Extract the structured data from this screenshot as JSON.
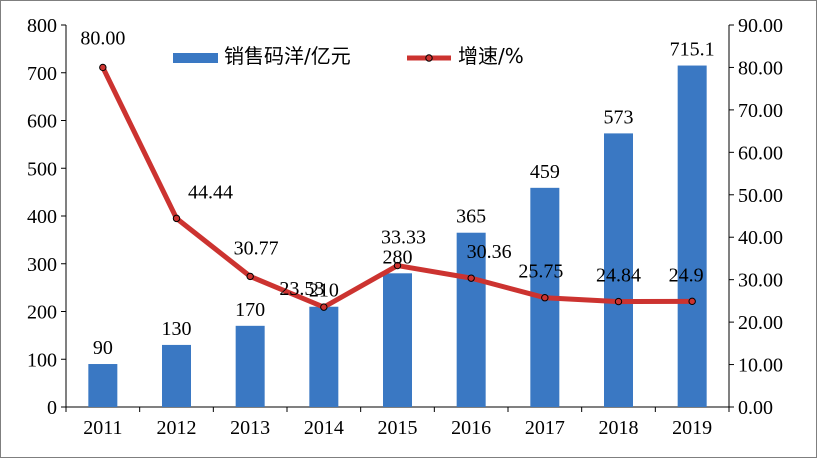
{
  "chart_data": {
    "type": "bar+line",
    "categories": [
      "2011",
      "2012",
      "2013",
      "2014",
      "2015",
      "2016",
      "2017",
      "2018",
      "2019"
    ],
    "series": [
      {
        "name": "销售码洋/亿元",
        "type": "bar",
        "axis": "left",
        "color": "#3a78c3",
        "values": [
          90,
          130,
          170,
          210,
          280,
          365,
          459,
          573,
          715.1
        ],
        "labels": [
          "90",
          "130",
          "170",
          "210",
          "280",
          "365",
          "459",
          "573",
          "715.1"
        ]
      },
      {
        "name": "增速/%",
        "type": "line",
        "axis": "right",
        "color": "#cc3330",
        "values": [
          80.0,
          44.44,
          30.77,
          23.53,
          33.33,
          30.36,
          25.75,
          24.84,
          24.9
        ],
        "labels": [
          "80.00",
          "44.44",
          "30.77",
          "23.53",
          "33.33",
          "30.36",
          "25.75",
          "24.84",
          "24.9"
        ]
      }
    ],
    "y_left": {
      "min": 0,
      "max": 800,
      "ticks": [
        "0",
        "100",
        "200",
        "300",
        "400",
        "500",
        "600",
        "700",
        "800"
      ]
    },
    "y_right": {
      "min": 0,
      "max": 90,
      "ticks": [
        "0.00",
        "10.00",
        "20.00",
        "30.00",
        "40.00",
        "50.00",
        "60.00",
        "70.00",
        "80.00",
        "90.00"
      ]
    },
    "legend": {
      "position": "top"
    },
    "grid": false
  }
}
